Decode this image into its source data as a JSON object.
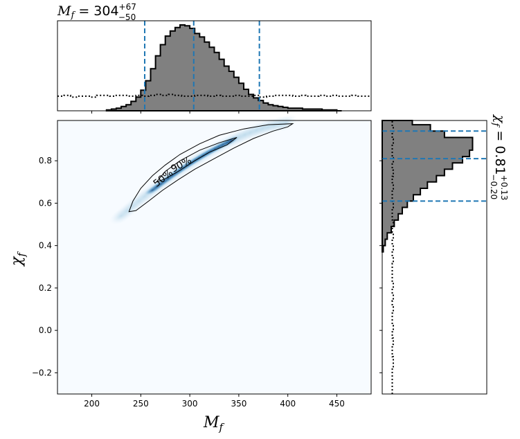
{
  "chart_data": {
    "type": "heatmap",
    "marginal_top_title": {
      "variable": "M",
      "subscript": "f",
      "equals": " = 304",
      "sup": "+67",
      "sub": "−50"
    },
    "marginal_right_title": {
      "variable": "χ",
      "subscript": "f",
      "equals": " = 0.81",
      "sup": "+0.13",
      "sub": "−0.20"
    },
    "xlabel": {
      "var": "M",
      "sub": "f"
    },
    "ylabel": {
      "var": "χ",
      "sub": "f"
    },
    "xlim": [
      165,
      485
    ],
    "ylim": [
      -0.3,
      0.99
    ],
    "xticks": [
      200,
      250,
      300,
      350,
      400,
      450
    ],
    "xtick_labels": [
      "200",
      "250",
      "300",
      "350",
      "400",
      "450"
    ],
    "yticks": [
      -0.2,
      0.0,
      0.2,
      0.4,
      0.6,
      0.8
    ],
    "ytick_labels": [
      "−0.2",
      "0.0",
      "0.2",
      "0.4",
      "0.6",
      "0.8"
    ],
    "contour_labels": [
      "50%",
      "90%"
    ],
    "mass_quantiles": [
      254,
      304,
      371
    ],
    "spin_quantiles": [
      0.61,
      0.81,
      0.94
    ],
    "mass_hist_edges": [
      215,
      220,
      225,
      230,
      235,
      240,
      245,
      250,
      255,
      260,
      265,
      270,
      275,
      280,
      285,
      290,
      295,
      300,
      305,
      310,
      315,
      320,
      325,
      330,
      335,
      340,
      345,
      350,
      355,
      360,
      365,
      370,
      375,
      380,
      385,
      390,
      395,
      400,
      405,
      410,
      415,
      420,
      425,
      430,
      435,
      440,
      445,
      450,
      455
    ],
    "mass_hist_values": [
      0.01,
      0.02,
      0.03,
      0.05,
      0.07,
      0.11,
      0.16,
      0.24,
      0.35,
      0.49,
      0.64,
      0.77,
      0.87,
      0.93,
      0.97,
      1.0,
      0.99,
      0.96,
      0.9,
      0.86,
      0.8,
      0.74,
      0.68,
      0.6,
      0.52,
      0.46,
      0.39,
      0.32,
      0.25,
      0.19,
      0.15,
      0.12,
      0.09,
      0.07,
      0.06,
      0.05,
      0.04,
      0.03,
      0.03,
      0.03,
      0.02,
      0.02,
      0.02,
      0.02,
      0.01,
      0.01,
      0.01,
      0.0
    ],
    "mass_prior_values": [
      0.17,
      0.18,
      0.16,
      0.17,
      0.17,
      0.16,
      0.18,
      0.18,
      0.17,
      0.18,
      0.18,
      0.17,
      0.18,
      0.17,
      0.18,
      0.19,
      0.18,
      0.19,
      0.18,
      0.17,
      0.17,
      0.18,
      0.18,
      0.17,
      0.18,
      0.17,
      0.17,
      0.18,
      0.17,
      0.17,
      0.18,
      0.16,
      0.17,
      0.18,
      0.18,
      0.18,
      0.17,
      0.18,
      0.17,
      0.17,
      0.18,
      0.17,
      0.18,
      0.17,
      0.17,
      0.18,
      0.17,
      0.17
    ],
    "spin_hist_edges": [
      0.37,
      0.4,
      0.43,
      0.46,
      0.49,
      0.52,
      0.55,
      0.58,
      0.61,
      0.64,
      0.67,
      0.7,
      0.73,
      0.76,
      0.79,
      0.82,
      0.85,
      0.88,
      0.91,
      0.94,
      0.97,
      0.99
    ],
    "spin_hist_values": [
      0.01,
      0.03,
      0.05,
      0.09,
      0.12,
      0.16,
      0.2,
      0.25,
      0.31,
      0.38,
      0.45,
      0.54,
      0.62,
      0.7,
      0.8,
      0.87,
      0.9,
      0.9,
      0.62,
      0.48,
      0.3
    ],
    "spin_prior_values": [
      0.1,
      0.1,
      0.1,
      0.1,
      0.11,
      0.11,
      0.1,
      0.1,
      0.11,
      0.1,
      0.11,
      0.1,
      0.1,
      0.11,
      0.1,
      0.11,
      0.1,
      0.11,
      0.1,
      0.1,
      0.1,
      0.11,
      0.1,
      0.11,
      0.1,
      0.11,
      0.1,
      0.11,
      0.1,
      0.1,
      0.11,
      0.1,
      0.1,
      0.11,
      0.1,
      0.11,
      0.1,
      0.11,
      0.1,
      0.1,
      0.11,
      0.1,
      0.11,
      0.1
    ],
    "colors": {
      "hist_fill": "#808080",
      "hist_edge": "#000000",
      "quantile_line": "#1f77b4",
      "heatmap_low": "#f7fbff",
      "heatmap_high": "#08306b"
    }
  }
}
